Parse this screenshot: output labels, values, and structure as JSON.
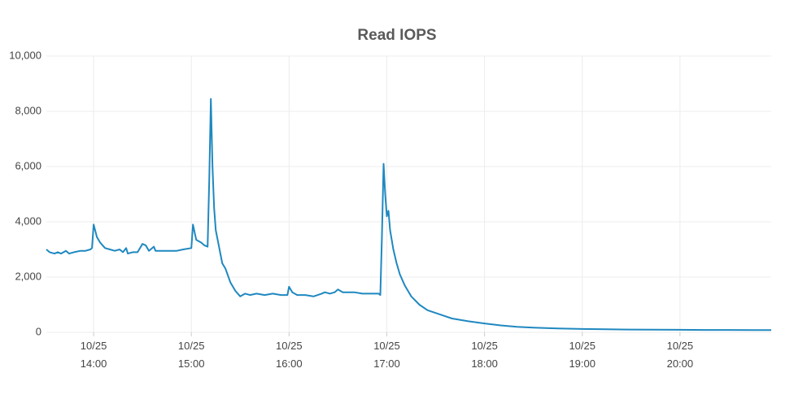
{
  "chart_data": {
    "type": "line",
    "title": "Read IOPS",
    "x": [
      "10/25 13:31",
      "10/25 13:33",
      "10/25 13:36",
      "10/25 13:38",
      "10/25 13:40",
      "10/25 13:43",
      "10/25 13:45",
      "10/25 13:48",
      "10/25 13:52",
      "10/25 13:55",
      "10/25 13:58",
      "10/25 13:59",
      "10/25 14:00",
      "10/25 14:02",
      "10/25 14:04",
      "10/25 14:07",
      "10/25 14:10",
      "10/25 14:13",
      "10/25 14:16",
      "10/25 14:18",
      "10/25 14:20",
      "10/25 14:21",
      "10/25 14:24",
      "10/25 14:27",
      "10/25 14:30",
      "10/25 14:32",
      "10/25 14:34",
      "10/25 14:37",
      "10/25 14:38",
      "10/25 14:41",
      "10/25 14:45",
      "10/25 14:48",
      "10/25 14:51",
      "10/25 14:55",
      "10/25 15:00",
      "10/25 15:01",
      "10/25 15:03",
      "10/25 15:06",
      "10/25 15:08",
      "10/25 15:10",
      "10/25 15:11",
      "10/25 15:12",
      "10/25 15:13",
      "10/25 15:14",
      "10/25 15:15",
      "10/25 15:17",
      "10/25 15:19",
      "10/25 15:21",
      "10/25 15:24",
      "10/25 15:27",
      "10/25 15:30",
      "10/25 15:33",
      "10/25 15:36",
      "10/25 15:40",
      "10/25 15:45",
      "10/25 15:50",
      "10/25 15:55",
      "10/25 15:59",
      "10/25 16:00",
      "10/25 16:02",
      "10/25 16:05",
      "10/25 16:10",
      "10/25 16:15",
      "10/25 16:20",
      "10/25 16:22",
      "10/25 16:25",
      "10/25 16:28",
      "10/25 16:30",
      "10/25 16:33",
      "10/25 16:40",
      "10/25 16:45",
      "10/25 16:50",
      "10/25 16:55",
      "10/25 16:56",
      "10/25 16:57",
      "10/25 16:58",
      "10/25 16:59",
      "10/25 17:00",
      "10/25 17:01",
      "10/25 17:02",
      "10/25 17:04",
      "10/25 17:06",
      "10/25 17:08",
      "10/25 17:11",
      "10/25 17:15",
      "10/25 17:20",
      "10/25 17:25",
      "10/25 17:30",
      "10/25 17:35",
      "10/25 17:40",
      "10/25 17:50",
      "10/25 18:00",
      "10/25 18:10",
      "10/25 18:20",
      "10/25 18:30",
      "10/25 18:45",
      "10/25 19:00",
      "10/25 19:15",
      "10/25 19:30",
      "10/25 19:45",
      "10/25 20:00",
      "10/25 20:15",
      "10/25 20:30",
      "10/25 20:45",
      "10/25 20:56"
    ],
    "series": [
      {
        "color": "#1f88c0",
        "values": [
          3000,
          2900,
          2850,
          2900,
          2850,
          2950,
          2850,
          2900,
          2950,
          2950,
          3000,
          3050,
          3900,
          3450,
          3250,
          3050,
          3000,
          2950,
          3000,
          2900,
          3050,
          2850,
          2900,
          2900,
          3200,
          3150,
          2950,
          3100,
          2950,
          2950,
          2950,
          2950,
          2950,
          3000,
          3050,
          3900,
          3350,
          3250,
          3150,
          3100,
          5500,
          8450,
          6000,
          4500,
          3700,
          3100,
          2500,
          2300,
          1800,
          1500,
          1300,
          1400,
          1350,
          1400,
          1350,
          1400,
          1350,
          1350,
          1650,
          1450,
          1350,
          1350,
          1300,
          1400,
          1450,
          1400,
          1450,
          1550,
          1450,
          1450,
          1400,
          1400,
          1400,
          1350,
          3500,
          6100,
          5000,
          4200,
          4400,
          3700,
          3000,
          2500,
          2100,
          1700,
          1300,
          1000,
          800,
          700,
          600,
          500,
          400,
          320,
          250,
          200,
          170,
          140,
          120,
          110,
          100,
          95,
          90,
          85,
          85,
          80,
          80
        ]
      }
    ],
    "xlim": [
      "10/25 13:31",
      "10/25 20:56"
    ],
    "xticks": [
      "10/25 14:00",
      "10/25 15:00",
      "10/25 16:00",
      "10/25 17:00",
      "10/25 18:00",
      "10/25 19:00",
      "10/25 20:00"
    ],
    "ylim": [
      0,
      10000
    ],
    "yticks": [
      0,
      {
        "value": 2000,
        "label": "2,000"
      },
      {
        "value": 4000,
        "label": "4,000"
      },
      {
        "value": 6000,
        "label": "6,000"
      },
      {
        "value": 8000,
        "label": "8,000"
      },
      {
        "value": 10000,
        "label": "10,000"
      }
    ],
    "grid": true
  }
}
